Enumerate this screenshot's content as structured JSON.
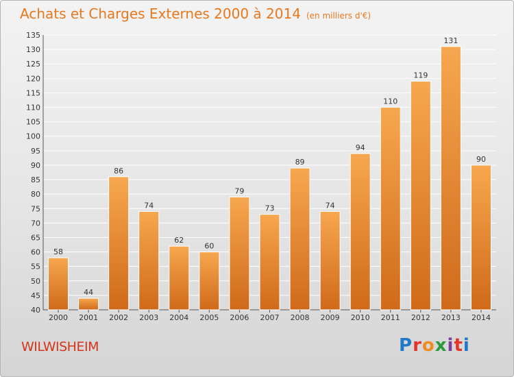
{
  "page": {
    "title": "Achats et Charges Externes 2000 à 2014",
    "subtitle": "(en milliers d'€)",
    "commune": "WILWISHEIM",
    "logo": "Proxiti"
  },
  "colors": {
    "bar_light": "#f7a74f",
    "bar_dark": "#cf6a1a",
    "title": "#e8781e",
    "commune": "#d4351c",
    "logo_letters": [
      "#1f78c8",
      "#e5352b",
      "#f08c1e",
      "#2a9a3c",
      "#7b3fa0",
      "#e5352b",
      "#1f78c8"
    ]
  },
  "chart_data": {
    "type": "bar",
    "title": "Achats et Charges Externes 2000 à 2014",
    "subtitle": "(en milliers d'€)",
    "categories": [
      "2000",
      "2001",
      "2002",
      "2003",
      "2004",
      "2005",
      "2006",
      "2007",
      "2008",
      "2009",
      "2010",
      "2011",
      "2012",
      "2013",
      "2014"
    ],
    "values": [
      58,
      44,
      86,
      74,
      62,
      60,
      79,
      73,
      89,
      74,
      94,
      110,
      119,
      131,
      90
    ],
    "ylim": [
      40,
      135
    ],
    "yticks": [
      40,
      45,
      50,
      55,
      60,
      65,
      70,
      75,
      80,
      85,
      90,
      95,
      100,
      105,
      110,
      115,
      120,
      125,
      130,
      135
    ],
    "grid": true,
    "xlabel": "",
    "ylabel": ""
  }
}
